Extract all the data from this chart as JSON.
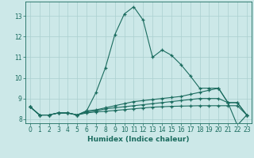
{
  "title": "",
  "xlabel": "Humidex (Indice chaleur)",
  "background_color": "#cce8e8",
  "grid_color": "#aacfcf",
  "line_color": "#1a6b5e",
  "xlim": [
    -0.5,
    23.5
  ],
  "ylim": [
    7.8,
    13.7
  ],
  "yticks": [
    8,
    9,
    10,
    11,
    12,
    13
  ],
  "xticks": [
    0,
    1,
    2,
    3,
    4,
    5,
    6,
    7,
    8,
    9,
    10,
    11,
    12,
    13,
    14,
    15,
    16,
    17,
    18,
    19,
    20,
    21,
    22,
    23
  ],
  "series": [
    [
      8.6,
      8.2,
      8.2,
      8.3,
      8.3,
      8.2,
      8.4,
      9.3,
      10.5,
      12.1,
      13.1,
      13.45,
      12.8,
      11.0,
      11.35,
      11.1,
      10.65,
      10.1,
      9.5,
      9.5,
      9.5,
      8.8,
      8.8,
      8.2
    ],
    [
      8.6,
      8.2,
      8.2,
      8.3,
      8.3,
      8.2,
      8.4,
      8.45,
      8.55,
      8.65,
      8.75,
      8.85,
      8.9,
      8.95,
      9.0,
      9.05,
      9.1,
      9.2,
      9.3,
      9.4,
      9.5,
      8.8,
      8.8,
      8.2
    ],
    [
      8.6,
      8.2,
      8.2,
      8.3,
      8.3,
      8.2,
      8.35,
      8.4,
      8.5,
      8.55,
      8.6,
      8.65,
      8.7,
      8.75,
      8.8,
      8.85,
      8.9,
      8.95,
      9.0,
      9.0,
      9.0,
      8.8,
      7.7,
      8.2
    ],
    [
      8.6,
      8.2,
      8.2,
      8.3,
      8.3,
      8.2,
      8.3,
      8.35,
      8.38,
      8.42,
      8.46,
      8.5,
      8.54,
      8.58,
      8.6,
      8.62,
      8.63,
      8.64,
      8.65,
      8.65,
      8.65,
      8.65,
      8.65,
      8.2
    ]
  ]
}
